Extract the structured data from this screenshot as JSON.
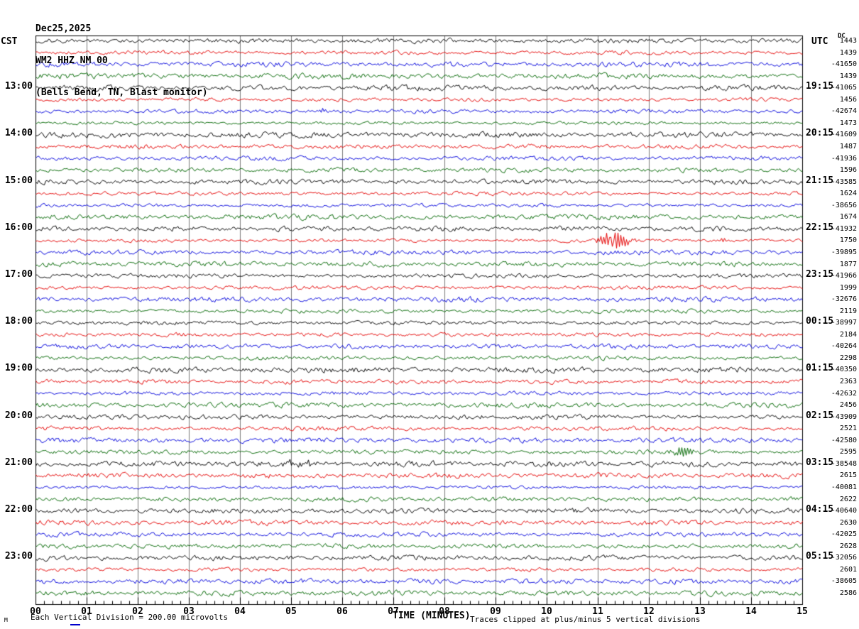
{
  "header": {
    "date": "Dec25,2025",
    "station": "WM2 HHZ NM 00",
    "location": "(Bells Bend, TN, Blast monitor)"
  },
  "axes": {
    "left_unit": "CST",
    "right_unit": "UTC",
    "dc_header": "DC",
    "xlabel": "TIME (MINUTES)",
    "minute_labels": [
      "00",
      "01",
      "02",
      "03",
      "04",
      "05",
      "06",
      "07",
      "08",
      "09",
      "10",
      "11",
      "12",
      "13",
      "14",
      "15"
    ]
  },
  "footer": {
    "scale_note": "Each Vertical Division =  200.00 microvolts",
    "clip_note": "Traces clipped at plus/minus 5 vertical divisions",
    "corner_mark": "M"
  },
  "colors": {
    "trace_cycle": [
      "#000000",
      "#e60000",
      "#0000dd",
      "#006600"
    ],
    "grid": "#7d7d7d",
    "frame": "#000000",
    "text": "#000000",
    "underline_accent": "#0000cc"
  },
  "chart_data": {
    "type": "line",
    "title": "WM2 HHZ NM 00 (Bells Bend, TN, Blast monitor) Dec25,2025",
    "xlabel": "TIME (MINUTES)",
    "xlim": [
      0,
      15
    ],
    "x_tick_labels": [
      "00",
      "01",
      "02",
      "03",
      "04",
      "05",
      "06",
      "07",
      "08",
      "09",
      "10",
      "11",
      "12",
      "13",
      "14",
      "15"
    ],
    "minor_ticks_seconds": 10,
    "grid": "vertical lines at each minute",
    "row_count": 48,
    "minutes_per_row": 15,
    "first_row_start_cst": "12:00",
    "row_color_cycle": [
      "black",
      "red",
      "blue",
      "green"
    ],
    "left_hour_labels_cst": [
      "13:00",
      "14:00",
      "15:00",
      "16:00",
      "17:00",
      "18:00",
      "19:00",
      "20:00",
      "21:00",
      "22:00",
      "23:00"
    ],
    "right_quarter_labels_utc": [
      "19:15",
      "20:15",
      "21:15",
      "22:15",
      "23:15",
      "00:15",
      "01:15",
      "02:15",
      "03:15",
      "04:15",
      "05:15"
    ],
    "dc_offsets": [
      1443,
      1439,
      -41650,
      1439,
      -41065,
      1456,
      -42674,
      1473,
      -41609,
      1487,
      -41936,
      1596,
      -43585,
      1624,
      -38656,
      1674,
      -41932,
      1750,
      -39895,
      1877,
      -41966,
      1999,
      -32676,
      2119,
      -38997,
      2184,
      -40264,
      2298,
      -40350,
      2363,
      -42632,
      2456,
      -43909,
      2521,
      -42580,
      2595,
      -38548,
      2615,
      -40081,
      2622,
      -40640,
      2630,
      -42025,
      2628,
      -32056,
      2601,
      -38605,
      2586
    ],
    "scale": "each vertical division = 200.00 microvolts",
    "clipping": "traces clipped at plus/minus 5 vertical divisions",
    "background_noise": "continuous microseismic noise of roughly one vertical division peak-to-peak on all traces",
    "events": [
      {
        "row": 6,
        "start_cst": "13:30",
        "color": "blue",
        "minute": 5.6,
        "size": "small",
        "description": "brief small blip"
      },
      {
        "row": 17,
        "start_cst": "16:15",
        "color": "red",
        "minute": 11.3,
        "size": "large",
        "description": "strong burst with tall spike"
      },
      {
        "row": 17,
        "start_cst": "16:15",
        "color": "red",
        "minute": 13.45,
        "size": "small",
        "description": "secondary small burst"
      },
      {
        "row": 35,
        "start_cst": "20:45",
        "color": "green",
        "minute": 12.65,
        "size": "medium",
        "description": "burst"
      },
      {
        "row": 36,
        "start_cst": "21:00",
        "color": "black",
        "minute": 4.82,
        "size": "medium",
        "description": "burst with short tail"
      }
    ]
  }
}
